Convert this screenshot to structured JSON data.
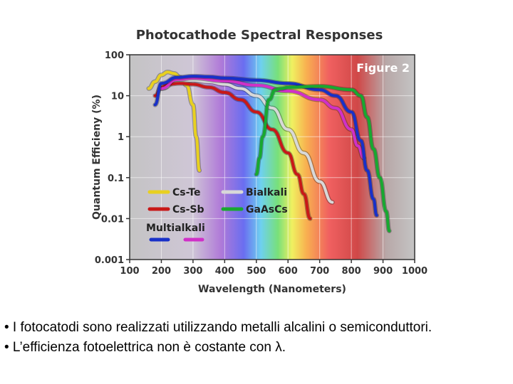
{
  "chart_data": {
    "type": "line",
    "title": "Photocathode Spectral Responses",
    "badge": "Figure 2",
    "xlabel": "Wavelength (Nanometers)",
    "ylabel": "Quantum Efficieny (%)",
    "xlim": [
      100,
      1000
    ],
    "ylim": [
      0.001,
      100
    ],
    "yscale": "log",
    "xticks": [
      "100",
      "200",
      "300",
      "400",
      "500",
      "600",
      "700",
      "800",
      "900",
      "1000"
    ],
    "yticks": [
      "100",
      "10",
      "1",
      "0.1",
      "0.01",
      "0.001"
    ],
    "grid": true,
    "legend_title": "Multialkali",
    "series": [
      {
        "name": "Cs-Te",
        "color": "#e8d020",
        "x": [
          160,
          180,
          200,
          220,
          240,
          260,
          280,
          300,
          310,
          320
        ],
        "y": [
          15,
          22,
          32,
          38,
          35,
          28,
          18,
          6,
          1,
          0.15
        ]
      },
      {
        "name": "Cs-Sb",
        "color": "#c81818",
        "x": [
          180,
          200,
          220,
          260,
          300,
          350,
          400,
          450,
          500,
          550,
          600,
          630,
          650,
          670
        ],
        "y": [
          10,
          16,
          19,
          20,
          19,
          16,
          12,
          8,
          4,
          1.5,
          0.4,
          0.12,
          0.04,
          0.01
        ]
      },
      {
        "name": "Bialkali",
        "color": "#d8d8d8",
        "x": [
          200,
          250,
          300,
          350,
          400,
          450,
          500,
          550,
          600,
          650,
          700,
          740
        ],
        "y": [
          15,
          22,
          24,
          22,
          19,
          15,
          10,
          5,
          1.5,
          0.4,
          0.08,
          0.025
        ]
      },
      {
        "name": "GaAsCs",
        "color": "#18a830",
        "x": [
          500,
          510,
          520,
          540,
          560,
          580,
          600,
          700,
          800,
          830,
          850,
          870,
          890,
          910,
          920
        ],
        "y": [
          0.12,
          0.3,
          1,
          8,
          14,
          15,
          16,
          17,
          14,
          10,
          3,
          0.5,
          0.1,
          0.015,
          0.005
        ]
      },
      {
        "name": "Multialkali",
        "color": "#1830c8",
        "x": [
          180,
          200,
          250,
          300,
          350,
          400,
          500,
          600,
          700,
          750,
          800,
          830,
          850,
          870,
          880
        ],
        "y": [
          6,
          20,
          28,
          30,
          29,
          27,
          24,
          20,
          14,
          10,
          4,
          0.8,
          0.15,
          0.03,
          0.012
        ]
      },
      {
        "name": "Multialkali",
        "color": "#d030c8",
        "x": [
          200,
          250,
          300,
          400,
          500,
          600,
          700,
          750,
          800,
          820,
          840
        ],
        "y": [
          15,
          25,
          27,
          23,
          18,
          13,
          8,
          5,
          1.5,
          0.6,
          0.3
        ]
      }
    ]
  },
  "bullets": [
    "• I fotocatodi sono realizzati utilizzando metalli alcalini o semiconduttori.",
    "• L’efficienza fotoelettrica non è costante con λ."
  ]
}
